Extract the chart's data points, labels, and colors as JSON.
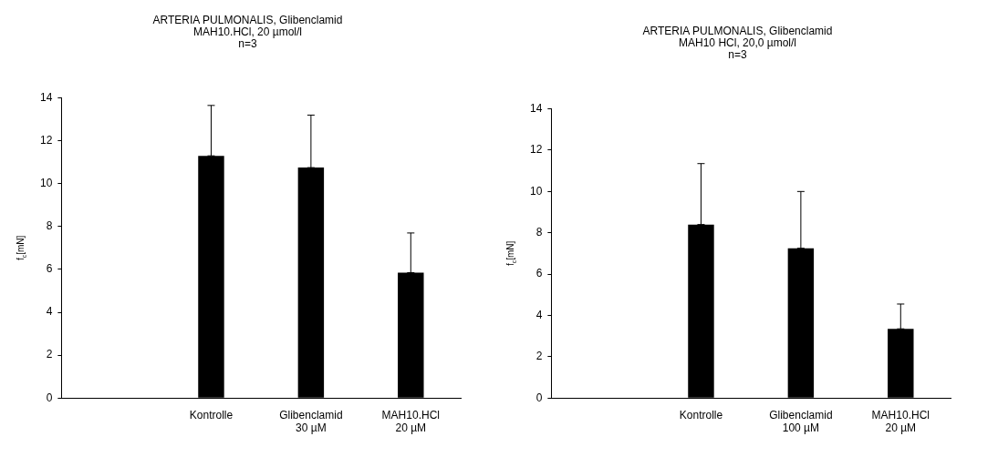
{
  "chart_data": [
    {
      "type": "bar",
      "title": "ARTERIA PULMONALIS, Glibenclamid\nMAH10.HCl, 20 µmol/l\nn=3",
      "ylabel": "f$_{c}$[mN]",
      "categories": [
        null,
        "Kontrolle",
        "Glibenclamid\n30 µM",
        "MAH10.HCl\n20 µM"
      ],
      "values": [
        null,
        11.3,
        10.75,
        5.85
      ],
      "errors": [
        null,
        [
          11.3,
          13.65
        ],
        [
          10.75,
          13.2
        ],
        [
          5.85,
          7.7
        ]
      ],
      "color": "#000000",
      "ylim": [
        0,
        14
      ],
      "yticks": [
        0,
        2,
        4,
        6,
        8,
        10,
        12,
        14
      ],
      "grid": false
    },
    {
      "type": "bar",
      "title": "ARTERIA PULMONALIS, Glibenclamid\nMAH10 HCl, 20,0 µmol/l\nn=3",
      "ylabel": "f$_{c}$[mN]",
      "categories": [
        null,
        "Kontrolle",
        "Glibenclamid\n100 µM",
        "MAH10.HCl\n20 µM"
      ],
      "values": [
        null,
        8.4,
        7.25,
        3.35
      ],
      "errors": [
        null,
        [
          8.4,
          11.35
        ],
        [
          7.25,
          10.0
        ],
        [
          3.35,
          4.55
        ]
      ],
      "color": "#000000",
      "ylim": [
        0,
        14
      ],
      "yticks": [
        0,
        2,
        4,
        6,
        8,
        10,
        12,
        14
      ],
      "grid": false
    }
  ]
}
